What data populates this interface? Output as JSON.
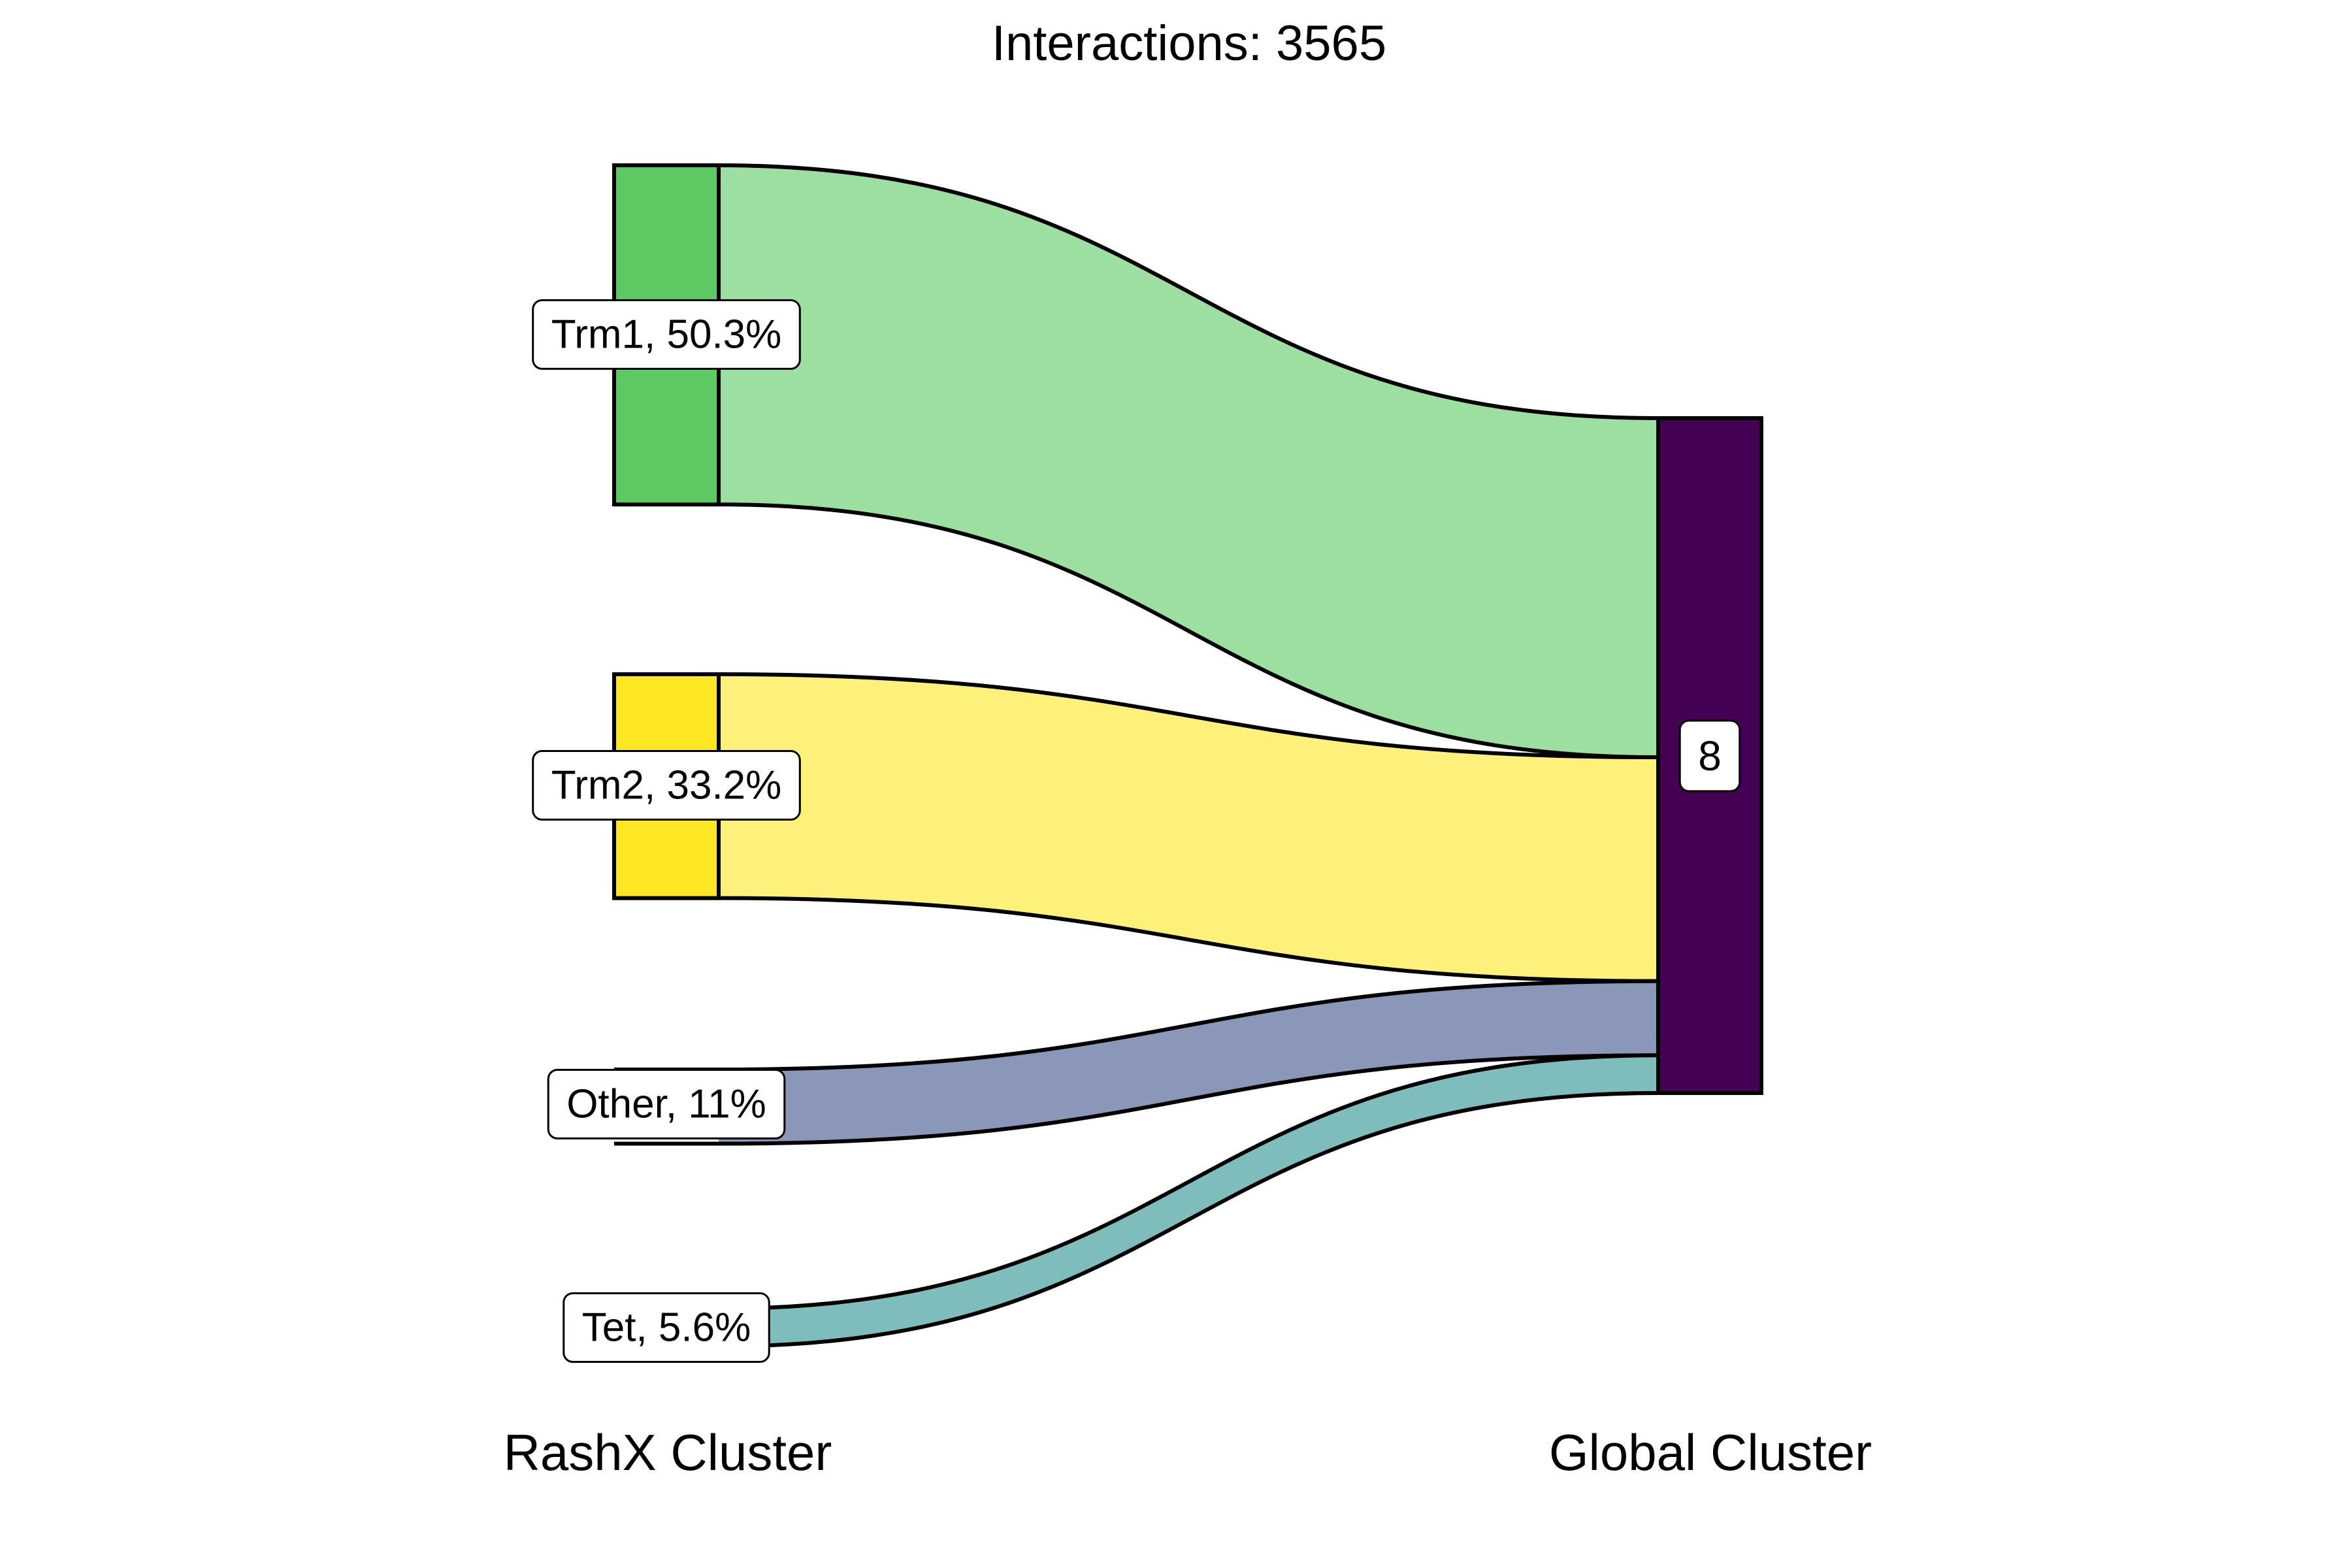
{
  "chart_data": {
    "type": "sankey",
    "title": "Interactions: 3565",
    "axis_labels": {
      "left": "RashX Cluster",
      "right": "Global Cluster"
    },
    "source_nodes": [
      {
        "name": "Trm1",
        "label": "Trm1, 50.3%",
        "percent": 50.3,
        "color": "#5ec962"
      },
      {
        "name": "Trm2",
        "label": "Trm2, 33.2%",
        "percent": 33.2,
        "color": "#fde725"
      },
      {
        "name": "Other",
        "label": "Other, 11%",
        "percent": 11,
        "color": "#8a97b8"
      },
      {
        "name": "Tet",
        "label": "Tet, 5.6%",
        "percent": 5.6,
        "color": "#7fbcbc"
      }
    ],
    "target_nodes": [
      {
        "name": "8",
        "label": "8",
        "color": "#440154"
      }
    ],
    "flows": [
      {
        "source": "Trm1",
        "target": "8",
        "percent": 50.3,
        "color": "#9ddfa1"
      },
      {
        "source": "Trm2",
        "target": "8",
        "percent": 33.2,
        "color": "#fdf17c"
      },
      {
        "source": "Other",
        "target": "8",
        "percent": 11,
        "color": "#8a97b8"
      },
      {
        "source": "Tet",
        "target": "8",
        "percent": 5.6,
        "color": "#7fbcbc"
      }
    ]
  }
}
